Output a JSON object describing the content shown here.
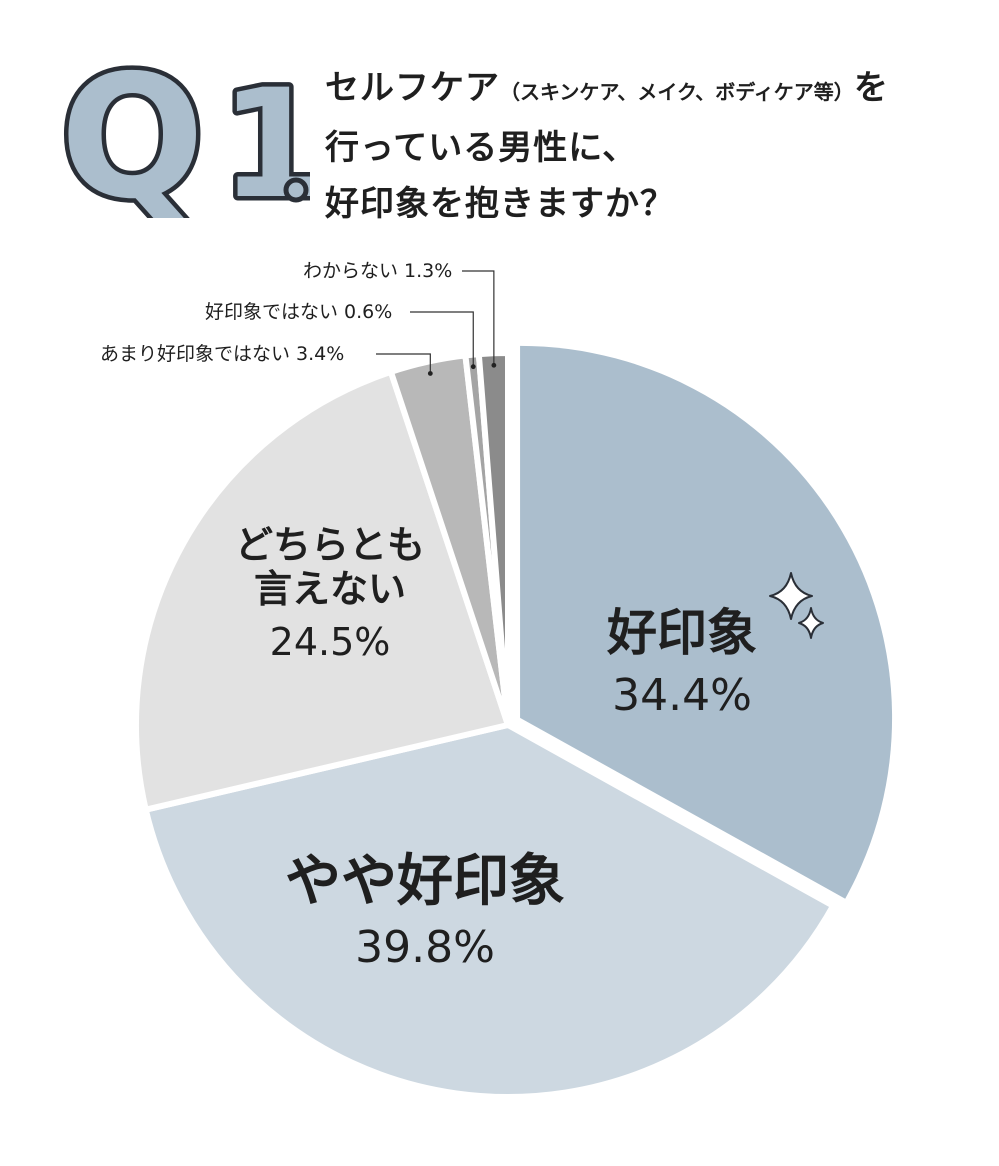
{
  "header": {
    "badge_q": "Q",
    "badge_num": "1",
    "question_line1_prefix": "セルフケア",
    "question_line1_paren": "（スキンケア、メイク、ボディケア等）",
    "question_line1_suffix": "を",
    "question_line2": "行っている男性に、",
    "question_line3": "好印象を抱きますか？"
  },
  "colors": {
    "slice_1": "#abbecd",
    "slice_2": "#cdd8e1",
    "slice_3": "#e2e2e2",
    "slice_4": "#b8b8b8",
    "slice_5": "#a4a4a4",
    "slice_6": "#8b8b8b",
    "badge_fill": "#abbecd",
    "badge_outline": "#2a2f37"
  },
  "chart_data": {
    "type": "pie",
    "slices": [
      {
        "label": "好印象",
        "value": 34.4,
        "value_label": "34.4%"
      },
      {
        "label": "やや好印象",
        "value": 39.8,
        "value_label": "39.8%"
      },
      {
        "label": "どちらとも言えない",
        "label_lines": [
          "どちらとも",
          "言えない"
        ],
        "value": 24.5,
        "value_label": "24.5%"
      },
      {
        "label": "あまり好印象ではない",
        "value": 3.4,
        "value_label": "3.4%"
      },
      {
        "label": "好印象ではない",
        "value": 0.6,
        "value_label": "0.6%"
      },
      {
        "label": "わからない",
        "value": 1.3,
        "value_label": "1.3%"
      }
    ]
  }
}
